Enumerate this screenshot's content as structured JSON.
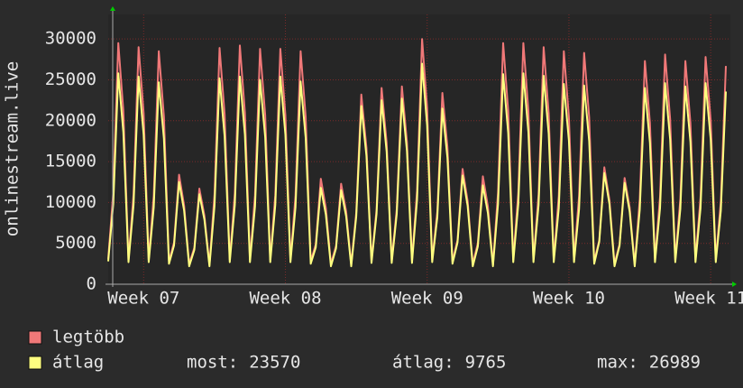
{
  "chart_data": {
    "type": "line",
    "y_label": "onlinestream.live",
    "categories": [
      null,
      null,
      null,
      null,
      null,
      null,
      null,
      "Week 07",
      null,
      null,
      null,
      null,
      null,
      null,
      null,
      null,
      null,
      null,
      null,
      null,
      null,
      null,
      null,
      null,
      null,
      null,
      null,
      null,
      null,
      null,
      null,
      null,
      null,
      null,
      null,
      "Week 08",
      null,
      null,
      null,
      null,
      null,
      null,
      null,
      null,
      null,
      null,
      null,
      null,
      null,
      null,
      null,
      null,
      null,
      null,
      null,
      null,
      null,
      null,
      null,
      null,
      null,
      null,
      null,
      "Week 09",
      null,
      null,
      null,
      null,
      null,
      null,
      null,
      null,
      null,
      null,
      null,
      null,
      null,
      null,
      null,
      null,
      null,
      null,
      null,
      null,
      null,
      null,
      null,
      null,
      null,
      null,
      null,
      "Week 10",
      null,
      null,
      null,
      null,
      null,
      null,
      null,
      null,
      null,
      null,
      null,
      null,
      null,
      null,
      null,
      null,
      null,
      null,
      null,
      null,
      null,
      null,
      null,
      null,
      null,
      null,
      null,
      "Week 11",
      null,
      null,
      null
    ],
    "series": [
      {
        "name": "legtöbb",
        "color": "#f07878",
        "values": [
          3100,
          11200,
          29500,
          21200,
          3000,
          11000,
          29000,
          20900,
          3000,
          10800,
          28500,
          20500,
          2800,
          5100,
          13400,
          9600,
          2500,
          4450,
          11700,
          8400,
          2400,
          11000,
          28900,
          20800,
          3000,
          11100,
          29200,
          21000,
          3000,
          10900,
          28800,
          20700,
          3000,
          10900,
          28800,
          20700,
          3000,
          10800,
          28500,
          20500,
          2800,
          4900,
          12900,
          9300,
          2500,
          4700,
          12300,
          8900,
          2400,
          8800,
          23200,
          16700,
          2900,
          9100,
          24000,
          17300,
          2900,
          9200,
          24200,
          17400,
          2900,
          11400,
          30000,
          21600,
          3000,
          8900,
          23400,
          16800,
          2800,
          5400,
          14100,
          10200,
          2500,
          5000,
          13200,
          9500,
          2400,
          11200,
          29500,
          21200,
          3000,
          11200,
          29500,
          21200,
          3000,
          11000,
          29000,
          20900,
          3000,
          10800,
          28500,
          20500,
          3000,
          10800,
          28300,
          20400,
          2800,
          5400,
          14300,
          10300,
          2500,
          4900,
          13000,
          9400,
          2400,
          10400,
          27300,
          19700,
          3000,
          10700,
          28100,
          20200,
          3000,
          10400,
          27300,
          19700,
          3000,
          10600,
          27800,
          20000,
          3000,
          10100,
          26700
        ]
      },
      {
        "name": "átlag",
        "color": "#ffff80",
        "values": [
          2800,
          9800,
          25800,
          18600,
          2700,
          9700,
          25400,
          18300,
          2700,
          9400,
          24700,
          17800,
          2500,
          4750,
          12500,
          9000,
          2200,
          4200,
          11000,
          7900,
          2200,
          9600,
          25200,
          18100,
          2700,
          9700,
          25400,
          18300,
          2700,
          9500,
          25000,
          18000,
          2700,
          9700,
          25400,
          18300,
          2700,
          9400,
          24800,
          17900,
          2500,
          4500,
          11800,
          8500,
          2200,
          4400,
          11500,
          8300,
          2200,
          8300,
          21800,
          15700,
          2600,
          8600,
          22500,
          16200,
          2600,
          8600,
          22700,
          16300,
          2600,
          10300,
          26989,
          19400,
          2700,
          8200,
          21500,
          15500,
          2500,
          5100,
          13300,
          9600,
          2200,
          4600,
          12100,
          8700,
          2200,
          9800,
          25700,
          18500,
          2700,
          9800,
          25800,
          18600,
          2700,
          9700,
          25500,
          18400,
          2700,
          9300,
          24500,
          17600,
          2700,
          9200,
          24300,
          17500,
          2500,
          5200,
          13600,
          9800,
          2200,
          4700,
          12400,
          8900,
          2200,
          9100,
          24000,
          17300,
          2700,
          9300,
          24600,
          17700,
          2700,
          9200,
          24200,
          17400,
          2700,
          9300,
          24600,
          17700,
          2700,
          9000,
          23570
        ]
      }
    ],
    "stats": [
      {
        "label": "most:",
        "value": 23570
      },
      {
        "label": "átlag:",
        "value": 9765
      },
      {
        "label": "max:",
        "value": 26989
      }
    ],
    "ylim": [
      0,
      33000
    ],
    "yticks": [
      0,
      5000,
      10000,
      15000,
      20000,
      25000,
      30000
    ],
    "grid": true
  }
}
